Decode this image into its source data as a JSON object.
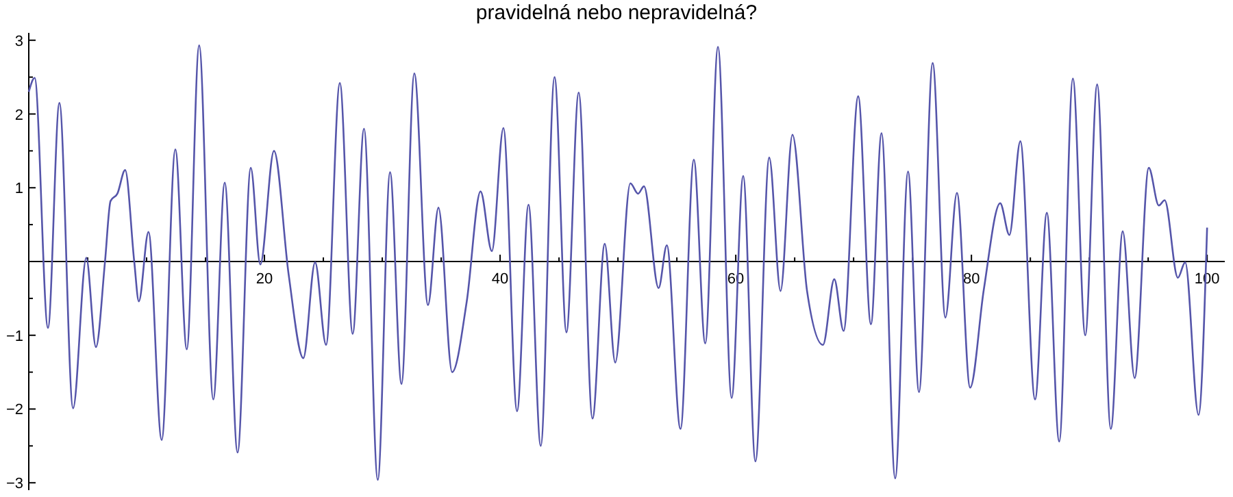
{
  "chart_data": {
    "type": "line",
    "title": "pravidelná nebo nepravidelná?",
    "x": [
      0,
      0.5,
      1.63,
      2.6,
      3.76,
      4.88,
      5.7,
      6.47,
      6.94,
      7.52,
      8.18,
      8.95,
      9.34,
      10.16,
      11.28,
      12.44,
      13.41,
      14.46,
      15.66,
      16.63,
      17.72,
      18.84,
      19.65,
      20.81,
      22.05,
      23.3,
      24.3,
      25.23,
      26.4,
      27.49,
      28.45,
      29.62,
      30.66,
      31.63,
      32.72,
      33.88,
      34.77,
      35.93,
      37.17,
      38.34,
      39.3,
      40.28,
      41.44,
      42.41,
      43.45,
      44.62,
      45.63,
      46.67,
      47.84,
      48.88,
      49.77,
      51.05,
      51.71,
      52.21,
      53.45,
      54.15,
      55.31,
      56.44,
      57.41,
      58.49,
      59.65,
      60.63,
      61.67,
      62.84,
      63.8,
      64.81,
      66.05,
      67.4,
      68.36,
      69.15,
      70.39,
      71.47,
      72.37,
      73.53,
      74.62,
      75.55,
      76.71,
      77.79,
      78.77,
      79.89,
      81.05,
      82.44,
      83.22,
      84.15,
      85.4,
      86.4,
      87.45,
      88.61,
      89.66,
      90.67,
      91.83,
      92.84,
      93.85,
      95.05,
      95.9,
      96.4,
      97.52,
      98.14,
      99.27,
      100
    ],
    "series": [
      {
        "color": "#5555aa",
        "values": [
          2.3,
          2.49,
          -0.9,
          2.15,
          -1.99,
          0.05,
          -1.16,
          0,
          0.82,
          0.92,
          1.24,
          0,
          -0.54,
          0.4,
          -2.42,
          1.52,
          -1.19,
          2.93,
          -1.87,
          1.07,
          -2.59,
          1.27,
          -0.04,
          1.5,
          -0.17,
          -1.31,
          -0.01,
          -1.13,
          2.42,
          -0.98,
          1.8,
          -2.96,
          1.21,
          -1.66,
          2.55,
          -0.59,
          0.73,
          -1.5,
          -0.54,
          0.95,
          0.14,
          1.81,
          -2.03,
          0.77,
          -2.5,
          2.5,
          -0.96,
          2.29,
          -2.13,
          0.24,
          -1.37,
          1.06,
          0.92,
          1.02,
          -0.36,
          0.22,
          -2.27,
          1.38,
          -1.11,
          2.91,
          -1.85,
          1.16,
          -2.71,
          1.41,
          -0.4,
          1.72,
          -0.4,
          -1.13,
          -0.24,
          -0.94,
          2.24,
          -0.85,
          1.74,
          -2.94,
          1.22,
          -1.77,
          2.69,
          -0.76,
          0.93,
          -1.71,
          -0.38,
          0.79,
          0.36,
          1.63,
          -1.87,
          0.66,
          -2.44,
          2.48,
          -1,
          2.4,
          -2.27,
          0.41,
          -1.58,
          1.27,
          0.76,
          0.83,
          -0.22,
          -0.01,
          -2.08,
          0.46
        ]
      }
    ],
    "xlim": [
      0,
      101.5
    ],
    "ylim": [
      -3.1,
      3.1
    ],
    "xticks": [
      {
        "value": 5,
        "label": null
      },
      {
        "value": 10,
        "label": null
      },
      {
        "value": 15,
        "label": null
      },
      20,
      {
        "value": 25,
        "label": null
      },
      {
        "value": 30,
        "label": null
      },
      {
        "value": 35,
        "label": null
      },
      40,
      {
        "value": 45,
        "label": null
      },
      {
        "value": 50,
        "label": null
      },
      {
        "value": 55,
        "label": null
      },
      60,
      {
        "value": 65,
        "label": null
      },
      {
        "value": 70,
        "label": null
      },
      {
        "value": 75,
        "label": null
      },
      80,
      {
        "value": 85,
        "label": null
      },
      {
        "value": 90,
        "label": null
      },
      {
        "value": 95,
        "label": null
      },
      100
    ],
    "yticks": [
      -3,
      {
        "value": -2.5,
        "label": null
      },
      -2,
      {
        "value": -1.5,
        "label": null
      },
      -1,
      {
        "value": -0.5,
        "label": null
      },
      {
        "value": 0.5,
        "label": null
      },
      1,
      {
        "value": 1.5,
        "label": null
      },
      2,
      {
        "value": 2.5,
        "label": null
      },
      3
    ],
    "marker": "none",
    "line_style": "solid"
  }
}
